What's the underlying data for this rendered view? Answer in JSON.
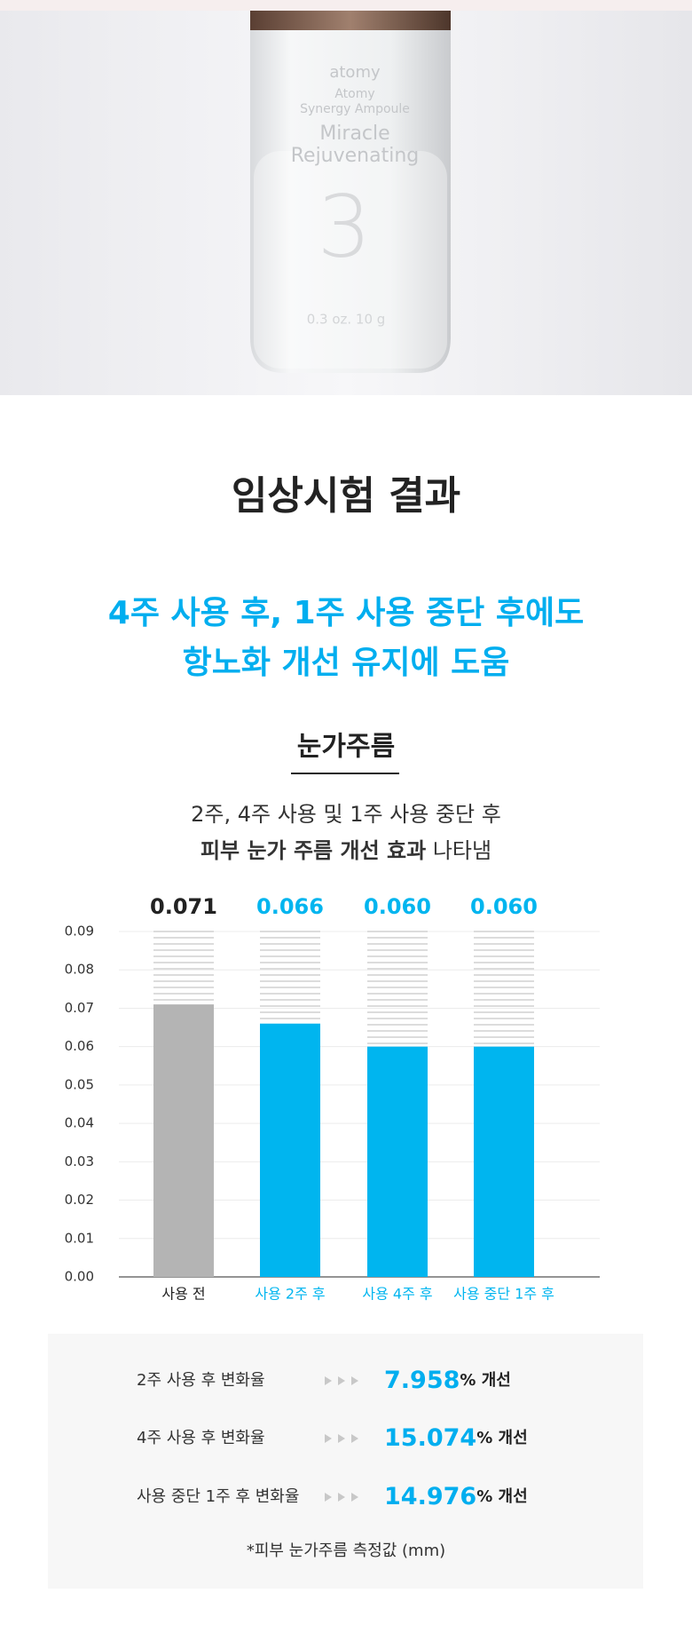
{
  "photo": {
    "brand": "atomy",
    "line1": "Atomy",
    "line2": "Synergy Ampoule",
    "line3": "Miracle",
    "line4": "Rejuvenating",
    "number": "3",
    "volume": "0.3 oz. 10 g"
  },
  "heading": "임상시험 결과",
  "headline": [
    "4주 사용 후, 1주 사용 중단 후에도",
    "항노화 개선 유지에 도움"
  ],
  "section": "눈가주름",
  "subtitle": {
    "line1": "2주, 4주 사용 및 1주 사용 중단 후",
    "bold": "피부 눈가 주름 개선 효과",
    "rest": "나타냄"
  },
  "chart_data": {
    "type": "bar",
    "categories": [
      "사용 전",
      "사용 2주 후",
      "사용 4주 후",
      "사용 중단 1주 후"
    ],
    "values": [
      0.071,
      0.066,
      0.06,
      0.06
    ],
    "value_labels": [
      "0.071",
      "0.066",
      "0.060",
      "0.060"
    ],
    "colors": [
      "#b4b4b4",
      "#00b5ef",
      "#00b5ef",
      "#00b5ef"
    ],
    "ylim": [
      0,
      0.09
    ],
    "yticks": [
      {
        "value": 0,
        "label": "0.00"
      },
      {
        "value": 0.01,
        "label": "0.01"
      },
      {
        "value": 0.02,
        "label": "0.02"
      },
      {
        "value": 0.03,
        "label": "0.03"
      },
      {
        "value": 0.04,
        "label": "0.04"
      },
      {
        "value": 0.05,
        "label": "0.05"
      },
      {
        "value": 0.06,
        "label": "0.06"
      },
      {
        "value": 0.07,
        "label": "0.07"
      },
      {
        "value": 0.08,
        "label": "0.08"
      },
      {
        "value": 0.09,
        "label": "0.09"
      }
    ],
    "grid": true
  },
  "stats": [
    {
      "label": "2주 사용 후 변화율",
      "value": "7.958",
      "unit": "% 개선"
    },
    {
      "label": "4주 사용 후 변화율",
      "value": "15.074",
      "unit": "% 개선"
    },
    {
      "label": "사용 중단 1주 후 변화율",
      "value": "14.976",
      "unit": "% 개선"
    }
  ],
  "footnote": "*피부 눈가주름 측정값 (mm)"
}
